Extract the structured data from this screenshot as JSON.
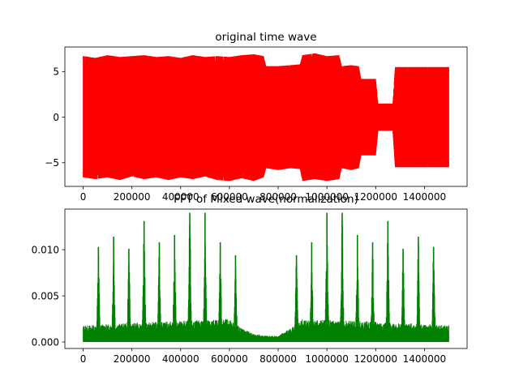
{
  "chart_data": [
    {
      "type": "area",
      "title": "original time wave",
      "color": "#ff0000",
      "grid": false,
      "xlim": [
        -75000,
        1575000
      ],
      "ylim": [
        -7.6,
        7.7
      ],
      "x_ticks": [
        0,
        200000,
        400000,
        600000,
        800000,
        1000000,
        1200000,
        1400000
      ],
      "x_tick_labels": [
        "0",
        "200000",
        "400000",
        "600000",
        "800000",
        "1000000",
        "1200000",
        "1400000"
      ],
      "y_ticks": [
        -5,
        0,
        5
      ],
      "y_tick_labels": [
        "−5",
        "0",
        "5"
      ],
      "series": [
        {
          "points": [
            {
              "x": 0,
              "y_min": -6.6,
              "y_max": 6.7
            },
            {
              "x": 50000,
              "y_min": -6.8,
              "y_max": 6.5
            },
            {
              "x": 100000,
              "y_min": -6.6,
              "y_max": 6.8
            },
            {
              "x": 150000,
              "y_min": -6.9,
              "y_max": 6.6
            },
            {
              "x": 200000,
              "y_min": -6.5,
              "y_max": 6.7
            },
            {
              "x": 250000,
              "y_min": -6.8,
              "y_max": 6.8
            },
            {
              "x": 300000,
              "y_min": -6.6,
              "y_max": 6.6
            },
            {
              "x": 350000,
              "y_min": -6.9,
              "y_max": 6.7
            },
            {
              "x": 400000,
              "y_min": -6.6,
              "y_max": 6.5
            },
            {
              "x": 450000,
              "y_min": -6.8,
              "y_max": 6.8
            },
            {
              "x": 500000,
              "y_min": -6.5,
              "y_max": 6.6
            },
            {
              "x": 550000,
              "y_min": -6.9,
              "y_max": 6.7
            },
            {
              "x": 600000,
              "y_min": -7.0,
              "y_max": 6.6
            },
            {
              "x": 650000,
              "y_min": -6.7,
              "y_max": 6.8
            },
            {
              "x": 700000,
              "y_min": -7.0,
              "y_max": 6.9
            },
            {
              "x": 740000,
              "y_min": -6.6,
              "y_max": 6.7
            },
            {
              "x": 750000,
              "y_min": -5.6,
              "y_max": 5.6
            },
            {
              "x": 800000,
              "y_min": -5.8,
              "y_max": 5.6
            },
            {
              "x": 850000,
              "y_min": -5.6,
              "y_max": 5.7
            },
            {
              "x": 890000,
              "y_min": -5.7,
              "y_max": 5.8
            },
            {
              "x": 900000,
              "y_min": -7.0,
              "y_max": 6.8
            },
            {
              "x": 950000,
              "y_min": -6.8,
              "y_max": 7.0
            },
            {
              "x": 1000000,
              "y_min": -7.0,
              "y_max": 6.7
            },
            {
              "x": 1050000,
              "y_min": -6.8,
              "y_max": 6.8
            },
            {
              "x": 1060000,
              "y_min": -5.6,
              "y_max": 5.6
            },
            {
              "x": 1100000,
              "y_min": -5.8,
              "y_max": 5.7
            },
            {
              "x": 1130000,
              "y_min": -5.6,
              "y_max": 5.6
            },
            {
              "x": 1140000,
              "y_min": -4.2,
              "y_max": 4.2
            },
            {
              "x": 1180000,
              "y_min": -4.2,
              "y_max": 4.2
            },
            {
              "x": 1200000,
              "y_min": -4.2,
              "y_max": 4.2
            },
            {
              "x": 1210000,
              "y_min": -1.5,
              "y_max": 1.5
            },
            {
              "x": 1250000,
              "y_min": -1.5,
              "y_max": 1.5
            },
            {
              "x": 1270000,
              "y_min": -1.5,
              "y_max": 1.5
            },
            {
              "x": 1280000,
              "y_min": -5.5,
              "y_max": 5.5
            },
            {
              "x": 1350000,
              "y_min": -5.5,
              "y_max": 5.5
            },
            {
              "x": 1420000,
              "y_min": -5.5,
              "y_max": 5.5
            },
            {
              "x": 1500000,
              "y_min": -5.5,
              "y_max": 5.5
            }
          ]
        }
      ]
    },
    {
      "type": "line",
      "title": "FFT of Mixed wave(normalization)",
      "color": "#008000",
      "grid": false,
      "xlim": [
        -75000,
        1575000
      ],
      "ylim": [
        -0.0007,
        0.0144
      ],
      "x_ticks": [
        0,
        200000,
        400000,
        600000,
        800000,
        1000000,
        1200000,
        1400000
      ],
      "x_tick_labels": [
        "0",
        "200000",
        "400000",
        "600000",
        "800000",
        "1000000",
        "1200000",
        "1400000"
      ],
      "y_ticks": [
        0.0,
        0.005,
        0.01
      ],
      "y_tick_labels": [
        "0.000",
        "0.005",
        "0.010"
      ],
      "peaks": [
        {
          "x": 62500,
          "y": 0.0103
        },
        {
          "x": 125000,
          "y": 0.0114
        },
        {
          "x": 187500,
          "y": 0.0101
        },
        {
          "x": 250000,
          "y": 0.0131
        },
        {
          "x": 312500,
          "y": 0.0108
        },
        {
          "x": 375000,
          "y": 0.0116
        },
        {
          "x": 437500,
          "y": 0.014
        },
        {
          "x": 500000,
          "y": 0.014
        },
        {
          "x": 562500,
          "y": 0.0108
        },
        {
          "x": 625000,
          "y": 0.0094
        },
        {
          "x": 875000,
          "y": 0.0094
        },
        {
          "x": 937500,
          "y": 0.0108
        },
        {
          "x": 1000000,
          "y": 0.014
        },
        {
          "x": 1062500,
          "y": 0.014
        },
        {
          "x": 1125000,
          "y": 0.0116
        },
        {
          "x": 1187500,
          "y": 0.0108
        },
        {
          "x": 1250000,
          "y": 0.0131
        },
        {
          "x": 1312500,
          "y": 0.0101
        },
        {
          "x": 1375000,
          "y": 0.0114
        },
        {
          "x": 1437500,
          "y": 0.0103
        }
      ],
      "noise_floor": [
        {
          "x": 0,
          "y": 0.0018
        },
        {
          "x": 300000,
          "y": 0.0022
        },
        {
          "x": 600000,
          "y": 0.0025
        },
        {
          "x": 650000,
          "y": 0.0015
        },
        {
          "x": 700000,
          "y": 0.0009
        },
        {
          "x": 750000,
          "y": 0.0007
        },
        {
          "x": 800000,
          "y": 0.0007
        },
        {
          "x": 850000,
          "y": 0.0015
        },
        {
          "x": 900000,
          "y": 0.0025
        },
        {
          "x": 1200000,
          "y": 0.0022
        },
        {
          "x": 1500000,
          "y": 0.0018
        }
      ]
    }
  ]
}
